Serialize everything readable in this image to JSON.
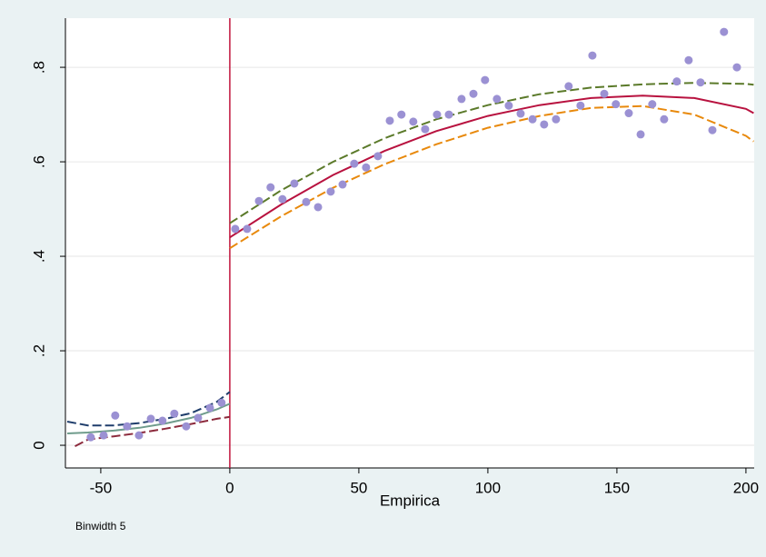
{
  "chart_data": {
    "type": "scatter",
    "xlabel": "Empirica",
    "note": "Binwidth 5",
    "xlim": [
      -63.7,
      203.2
    ],
    "ylim": [
      -0.048,
      0.904
    ],
    "xticks": [
      -50,
      0,
      50,
      100,
      150,
      200
    ],
    "yticks": [
      0,
      {
        "value": 0.2,
        "label": ".2"
      },
      {
        "value": 0.4,
        "label": ".4"
      },
      {
        "value": 0.6,
        "label": ".6"
      },
      {
        "value": 0.8,
        "label": ".8"
      }
    ],
    "grid": true,
    "vline": {
      "x": 0,
      "color": "#c0143c"
    },
    "series": [
      {
        "type": "scatter",
        "color": "#9b91d3",
        "x": [
          -53.9,
          -48.9,
          -44.4,
          -39.8,
          -35.2,
          -30.6,
          -26.1,
          -21.5,
          -16.9,
          -12.3,
          -7.7,
          -3.2
        ],
        "values": [
          0.017,
          0.021,
          0.063,
          0.04,
          0.021,
          0.056,
          0.052,
          0.067,
          0.04,
          0.058,
          0.079,
          0.09
        ]
      },
      {
        "type": "scatter",
        "color": "#9b91d3",
        "x": [
          2.1,
          6.7,
          11.3,
          15.8,
          20.4,
          25.0,
          29.6,
          34.2,
          39.1,
          43.7,
          48.2,
          52.8,
          57.4,
          62.0,
          66.5,
          71.1,
          75.7,
          80.3,
          84.9,
          89.8,
          94.4,
          98.9,
          103.5,
          108.1,
          112.7,
          117.3,
          121.8,
          126.4,
          131.3,
          135.9,
          140.5,
          145.1,
          149.6,
          154.6,
          159.2,
          163.7,
          168.3,
          173.2,
          177.8,
          182.4,
          187.0,
          191.5,
          196.5
        ],
        "values": [
          0.458,
          0.458,
          0.517,
          0.546,
          0.521,
          0.554,
          0.515,
          0.504,
          0.537,
          0.552,
          0.596,
          0.588,
          0.612,
          0.687,
          0.7,
          0.685,
          0.669,
          0.7,
          0.7,
          0.733,
          0.744,
          0.773,
          0.733,
          0.719,
          0.702,
          0.69,
          0.679,
          0.69,
          0.76,
          0.719,
          0.825,
          0.744,
          0.722,
          0.703,
          0.658,
          0.722,
          0.69,
          0.77,
          0.815,
          0.768,
          0.667,
          0.875,
          0.8
        ]
      },
      {
        "type": "line",
        "color": "#6f9c8c",
        "dash": false,
        "x": [
          -63,
          -55,
          -45,
          -35,
          -25,
          -15,
          -5,
          0
        ],
        "values": [
          0.025,
          0.027,
          0.031,
          0.037,
          0.046,
          0.058,
          0.076,
          0.088
        ]
      },
      {
        "type": "line",
        "color": "#1f3d6b",
        "dash": true,
        "x": [
          -63,
          -55,
          -45,
          -35,
          -25,
          -15,
          -5,
          0
        ],
        "values": [
          0.05,
          0.042,
          0.042,
          0.047,
          0.056,
          0.068,
          0.092,
          0.113
        ]
      },
      {
        "type": "line",
        "color": "#8c2a3c",
        "dash": true,
        "x": [
          -60,
          -55,
          -45,
          -35,
          -25,
          -15,
          -5,
          0
        ],
        "values": [
          -0.002,
          0.012,
          0.019,
          0.026,
          0.035,
          0.045,
          0.056,
          0.06
        ]
      },
      {
        "type": "line",
        "color": "#5b7a2a",
        "dash": true,
        "x": [
          0,
          20,
          40,
          60,
          80,
          100,
          120,
          140,
          160,
          180,
          200,
          203
        ],
        "values": [
          0.47,
          0.54,
          0.6,
          0.65,
          0.69,
          0.72,
          0.743,
          0.757,
          0.764,
          0.767,
          0.765,
          0.763
        ]
      },
      {
        "type": "line",
        "color": "#e8890c",
        "dash": true,
        "x": [
          0,
          20,
          40,
          60,
          80,
          100,
          120,
          140,
          160,
          180,
          200,
          203
        ],
        "values": [
          0.417,
          0.485,
          0.545,
          0.595,
          0.637,
          0.672,
          0.697,
          0.714,
          0.718,
          0.7,
          0.655,
          0.643
        ]
      },
      {
        "type": "line",
        "color": "#b8123f",
        "dash": false,
        "x": [
          0,
          20,
          40,
          60,
          80,
          100,
          120,
          140,
          160,
          180,
          200,
          203
        ],
        "values": [
          0.44,
          0.51,
          0.572,
          0.623,
          0.665,
          0.697,
          0.72,
          0.735,
          0.74,
          0.735,
          0.712,
          0.703
        ]
      }
    ]
  }
}
